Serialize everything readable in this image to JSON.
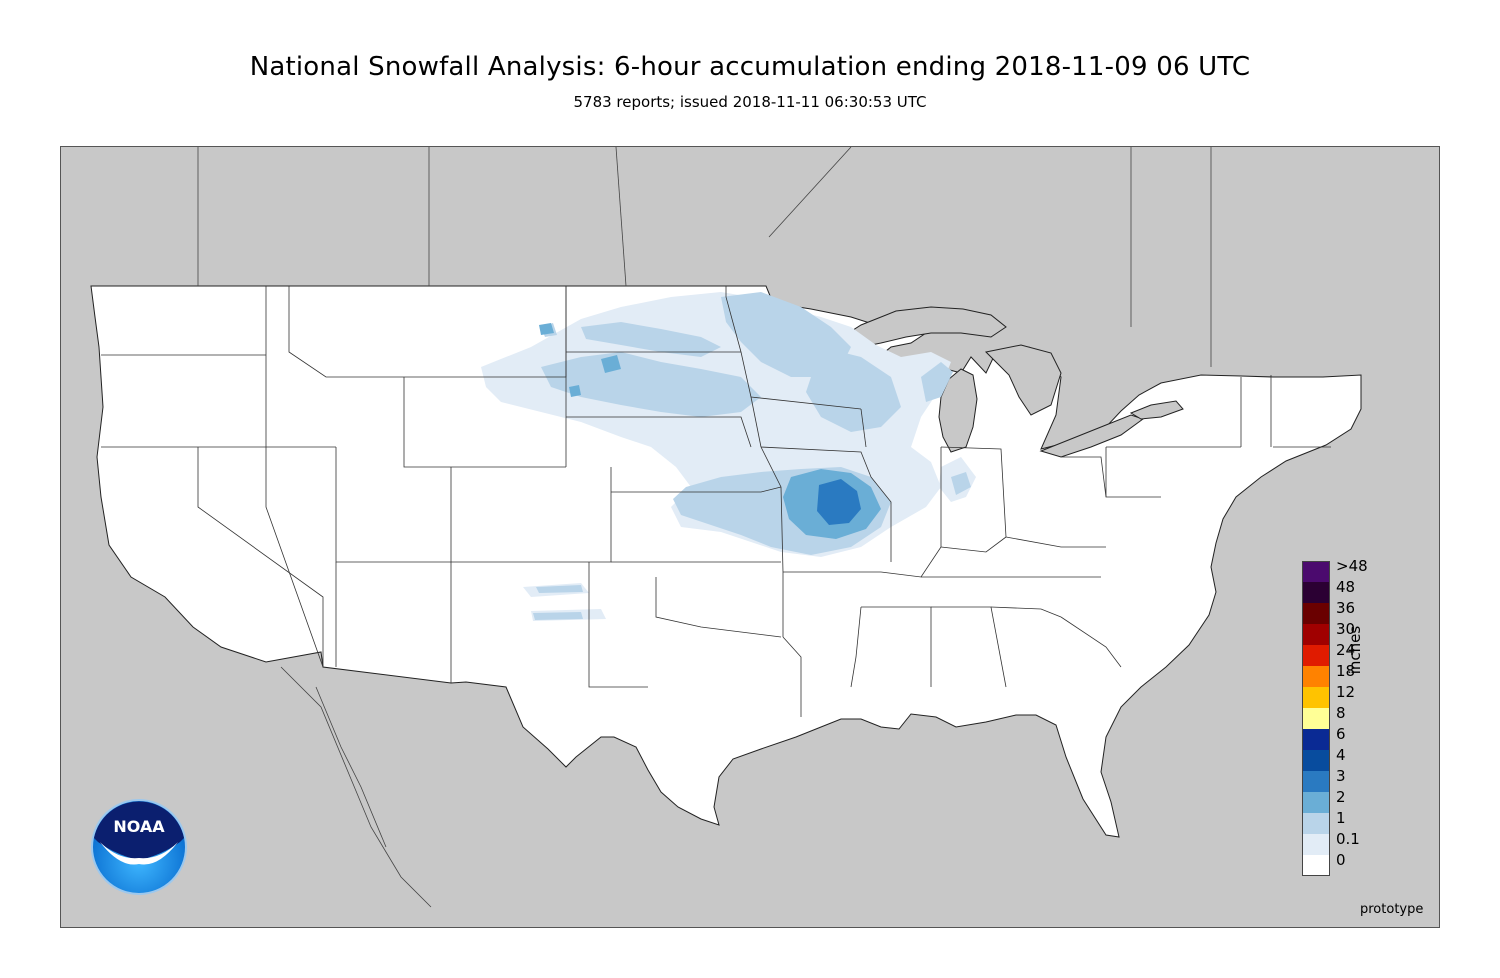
{
  "title": "National Snowfall Analysis: 6-hour accumulation ending 2018-11-09 06 UTC",
  "subtitle": "5783 reports; issued 2018-11-11 06:30:53 UTC",
  "logo_text": "NOAA",
  "footer_note": "prototype",
  "legend": {
    "units": "inches",
    "levels": [
      {
        "label": ">48",
        "color": "#4b0a6e"
      },
      {
        "label": "48",
        "color": "#2b0033"
      },
      {
        "label": "36",
        "color": "#6a0000"
      },
      {
        "label": "30",
        "color": "#a00000"
      },
      {
        "label": "24",
        "color": "#e01b00"
      },
      {
        "label": "18",
        "color": "#ff8200"
      },
      {
        "label": "12",
        "color": "#ffc300"
      },
      {
        "label": "8",
        "color": "#ffff96"
      },
      {
        "label": "6",
        "color": "#0a2a94"
      },
      {
        "label": "4",
        "color": "#084c9e"
      },
      {
        "label": "3",
        "color": "#2a7ac1"
      },
      {
        "label": "2",
        "color": "#6aaed6"
      },
      {
        "label": "1",
        "color": "#b9d4e9"
      },
      {
        "label": "0.1",
        "color": "#e2ecf6"
      },
      {
        "label": "0",
        "color": "#ffffff"
      }
    ]
  },
  "colors": {
    "background_land": "#c8c8c8",
    "conus": "#ffffff",
    "boundary": "#222222"
  }
}
